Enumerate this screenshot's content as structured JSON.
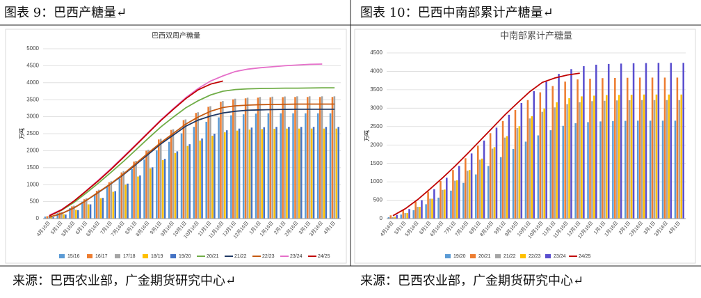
{
  "header": {
    "left": "图表 9：巴西产糖量↵",
    "right": "图表 10：巴西中南部累计产糖量↵"
  },
  "footer": {
    "left": "来源：巴西农业部，广金期货研究中心↵",
    "right": "来源：巴西农业部，广金期货研究中心↵"
  },
  "chart_data": [
    {
      "type": "bar-line",
      "title": "巴西双周产糖量",
      "y_label": "万吨",
      "categories": [
        "4月16日",
        "5月1日",
        "5月16日",
        "6月1日",
        "6月16日",
        "7月1日",
        "7月16日",
        "8月1日",
        "8月16日",
        "9月1日",
        "9月16日",
        "10月1日",
        "10月16日",
        "11月1日",
        "11月16日",
        "12月1日",
        "12月16日",
        "1月1日",
        "1月16日",
        "2月1日",
        "2月16日",
        "3月1日",
        "3月16日",
        "4月1日"
      ],
      "ylim": [
        0,
        5000
      ],
      "yticks": [
        0,
        500,
        1000,
        1500,
        2000,
        2500,
        3000,
        3500,
        4000,
        4500,
        5000
      ],
      "grid": true,
      "series": [
        {
          "name": "15/16",
          "kind": "bar",
          "color": "#5b9bd5",
          "values": [
            60,
            160,
            310,
            500,
            710,
            930,
            1180,
            1460,
            1740,
            2010,
            2260,
            2510,
            2700,
            2850,
            2980,
            3040,
            3070,
            3090,
            3100,
            3100,
            3100,
            3100,
            3100,
            3100
          ]
        },
        {
          "name": "16/17",
          "kind": "bar",
          "color": "#ed7d31",
          "values": [
            70,
            180,
            360,
            570,
            820,
            1070,
            1360,
            1680,
            2000,
            2330,
            2610,
            2900,
            3110,
            3290,
            3440,
            3510,
            3540,
            3560,
            3570,
            3575,
            3580,
            3580,
            3580,
            3580
          ]
        },
        {
          "name": "17/18",
          "kind": "bar",
          "color": "#a5a5a5",
          "values": [
            80,
            200,
            380,
            600,
            850,
            1100,
            1400,
            1700,
            2030,
            2350,
            2630,
            2920,
            3130,
            3310,
            3460,
            3530,
            3560,
            3580,
            3590,
            3595,
            3600,
            3600,
            3600,
            3600
          ]
        },
        {
          "name": "18/19",
          "kind": "bar",
          "color": "#ffc000",
          "values": [
            50,
            130,
            260,
            420,
            600,
            790,
            1000,
            1240,
            1480,
            1720,
            1930,
            2140,
            2300,
            2440,
            2540,
            2590,
            2620,
            2635,
            2645,
            2650,
            2650,
            2650,
            2650,
            2650
          ]
        },
        {
          "name": "19/20",
          "kind": "bar",
          "color": "#4472c4",
          "values": [
            40,
            120,
            250,
            420,
            610,
            810,
            1030,
            1270,
            1510,
            1760,
            1980,
            2190,
            2360,
            2500,
            2600,
            2650,
            2680,
            2690,
            2700,
            2700,
            2700,
            2700,
            2700,
            2700
          ]
        },
        {
          "name": "20/21",
          "kind": "line",
          "color": "#70ad47",
          "values": [
            90,
            250,
            480,
            760,
            1060,
            1370,
            1690,
            2030,
            2370,
            2700,
            2990,
            3260,
            3470,
            3640,
            3750,
            3800,
            3820,
            3830,
            3835,
            3840,
            3840,
            3845,
            3850,
            3850
          ]
        },
        {
          "name": "21/22",
          "kind": "line",
          "color": "#1f3864",
          "values": [
            40,
            150,
            320,
            540,
            780,
            1030,
            1300,
            1600,
            1900,
            2200,
            2460,
            2720,
            2900,
            3020,
            3110,
            3160,
            3190,
            3200,
            3210,
            3215,
            3220,
            3220,
            3220,
            3220
          ]
        },
        {
          "name": "22/23",
          "kind": "line",
          "color": "#c55a11",
          "values": [
            50,
            150,
            320,
            540,
            790,
            1040,
            1320,
            1630,
            1940,
            2240,
            2510,
            2780,
            2990,
            3160,
            3270,
            3320,
            3340,
            3355,
            3360,
            3365,
            3370,
            3370,
            3370,
            3370
          ]
        },
        {
          "name": "23/24",
          "kind": "line",
          "color": "#e56fc9",
          "values": [
            100,
            270,
            520,
            830,
            1150,
            1480,
            1830,
            2190,
            2550,
            2910,
            3240,
            3560,
            3830,
            4050,
            4200,
            4330,
            4400,
            4440,
            4470,
            4500,
            4520,
            4540,
            4550,
            null
          ]
        },
        {
          "name": "24/25",
          "kind": "line",
          "color": "#c00000",
          "values": [
            80,
            260,
            520,
            820,
            1130,
            1460,
            1810,
            2170,
            2530,
            2890,
            3220,
            3530,
            3790,
            3960,
            4050,
            null,
            null,
            null,
            null,
            null,
            null,
            null,
            null,
            null
          ]
        }
      ]
    },
    {
      "type": "bar-line",
      "title": "中南部累计产糖量",
      "y_label": "万吨",
      "categories": [
        "4月16日",
        "5月1日",
        "5月16日",
        "6月1日",
        "6月16日",
        "7月1日",
        "7月16日",
        "8月1日",
        "8月16日",
        "9月1日",
        "9月16日",
        "10月1日",
        "10月16日",
        "11月1日",
        "11月16日",
        "12月1日",
        "12月16日",
        "1月1日",
        "1月16日",
        "2月1日",
        "2月16日",
        "3月1日",
        "3月16日",
        "4月1日"
      ],
      "ylim": [
        0,
        4500
      ],
      "yticks": [
        0,
        500,
        1000,
        1500,
        2000,
        2500,
        3000,
        3500,
        4000,
        4500
      ],
      "grid": true,
      "series": [
        {
          "name": "19/20",
          "kind": "bar",
          "color": "#5b9bd5",
          "values": [
            40,
            110,
            230,
            390,
            570,
            760,
            970,
            1200,
            1430,
            1670,
            1890,
            2090,
            2260,
            2400,
            2520,
            2590,
            2620,
            2640,
            2650,
            2655,
            2660,
            2660,
            2660,
            2660
          ]
        },
        {
          "name": "20/21",
          "kind": "bar",
          "color": "#ed7d31",
          "values": [
            90,
            240,
            460,
            730,
            1020,
            1320,
            1640,
            1980,
            2320,
            2650,
            2950,
            3220,
            3430,
            3600,
            3720,
            3780,
            3800,
            3815,
            3820,
            3825,
            3830,
            3830,
            3830,
            3830
          ]
        },
        {
          "name": "21/22",
          "kind": "bar",
          "color": "#a5a5a5",
          "values": [
            40,
            150,
            320,
            540,
            780,
            1030,
            1300,
            1600,
            1900,
            2200,
            2460,
            2720,
            2900,
            3020,
            3110,
            3160,
            3190,
            3200,
            3210,
            3215,
            3220,
            3220,
            3220,
            3220
          ]
        },
        {
          "name": "22/23",
          "kind": "bar",
          "color": "#ffc000",
          "values": [
            50,
            150,
            320,
            540,
            790,
            1040,
            1320,
            1630,
            1940,
            2240,
            2510,
            2780,
            2990,
            3160,
            3270,
            3320,
            3340,
            3355,
            3360,
            3365,
            3370,
            3370,
            3370,
            3370
          ]
        },
        {
          "name": "23/24",
          "kind": "bar",
          "color": "#5a4fcf",
          "values": [
            100,
            260,
            500,
            800,
            1110,
            1430,
            1770,
            2120,
            2470,
            2820,
            3140,
            3460,
            3720,
            3930,
            4060,
            4140,
            4180,
            4200,
            4210,
            4220,
            4225,
            4230,
            4230,
            4230
          ]
        },
        {
          "name": "24/25",
          "kind": "line",
          "color": "#c00000",
          "values": [
            80,
            270,
            520,
            810,
            1110,
            1430,
            1770,
            2120,
            2470,
            2820,
            3140,
            3450,
            3700,
            3820,
            3900,
            3950,
            null,
            null,
            null,
            null,
            null,
            null,
            null,
            null
          ]
        }
      ]
    }
  ]
}
